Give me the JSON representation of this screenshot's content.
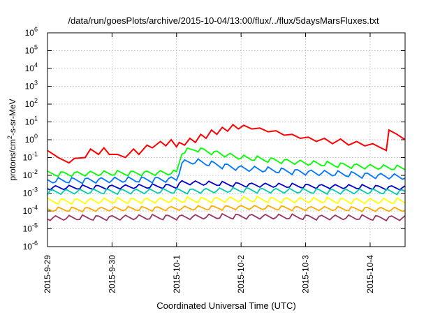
{
  "chart_data": {
    "type": "line",
    "title": "/data/run/goesPlots/archive/2015-10-04/13:00/flux/../flux/5daysMarsFluxes.txt",
    "xlabel": "Coordinated Universal Time (UTC)",
    "ylabel_parts": {
      "pre": "protons/cm",
      "sup": "2",
      "post": "-s-sr-MeV"
    },
    "y_scale": "log",
    "ylim": [
      1e-06,
      1000000
    ],
    "y_ticks": [
      {
        "value": 1e-06,
        "base": "10",
        "exp": "-6"
      },
      {
        "value": 1e-05,
        "base": "10",
        "exp": "-5"
      },
      {
        "value": 0.0001,
        "base": "10",
        "exp": "-4"
      },
      {
        "value": 0.001,
        "base": "10",
        "exp": "-3"
      },
      {
        "value": 0.01,
        "base": "10",
        "exp": "-2"
      },
      {
        "value": 0.1,
        "base": "10",
        "exp": "-1"
      },
      {
        "value": 1,
        "base": "10",
        "exp": "0"
      },
      {
        "value": 10,
        "base": "10",
        "exp": "1"
      },
      {
        "value": 100,
        "base": "10",
        "exp": "2"
      },
      {
        "value": 1000,
        "base": "10",
        "exp": "3"
      },
      {
        "value": 10000,
        "base": "10",
        "exp": "4"
      },
      {
        "value": 100000,
        "base": "10",
        "exp": "5"
      },
      {
        "value": 1000000,
        "base": "10",
        "exp": "6"
      }
    ],
    "xlim": [
      "2015-09-29 00:00",
      "2015-10-04 13:00"
    ],
    "x_ticks": [
      "2015-9-29",
      "2015-9-30",
      "2015-10-1",
      "2015-10-2",
      "2015-10-3",
      "2015-10-4"
    ],
    "grid": true,
    "series": [
      {
        "color": "#ff0000",
        "x": [
          "2015-09-29 00:00",
          "2015-09-29 04:00",
          "2015-09-29 08:00",
          "2015-09-29 10:00",
          "2015-09-29 14:00",
          "2015-09-29 16:00",
          "2015-09-29 19:00",
          "2015-09-29 21:00",
          "2015-09-29 23:00",
          "2015-09-30 02:00",
          "2015-09-30 05:00",
          "2015-09-30 08:00",
          "2015-09-30 10:00",
          "2015-09-30 13:00",
          "2015-09-30 15:00",
          "2015-09-30 18:00",
          "2015-09-30 20:00",
          "2015-09-30 22:00",
          "2015-10-01 00:00",
          "2015-10-01 01:00",
          "2015-10-01 03:00",
          "2015-10-01 05:00",
          "2015-10-01 07:00",
          "2015-10-01 09:00",
          "2015-10-01 11:00",
          "2015-10-01 13:00",
          "2015-10-01 15:00",
          "2015-10-01 17:00",
          "2015-10-01 19:00",
          "2015-10-01 21:00",
          "2015-10-01 23:00",
          "2015-10-02 01:00",
          "2015-10-02 04:00",
          "2015-10-02 07:00",
          "2015-10-02 10:00",
          "2015-10-02 13:00",
          "2015-10-02 16:00",
          "2015-10-02 19:00",
          "2015-10-02 22:00",
          "2015-10-03 01:00",
          "2015-10-03 04:00",
          "2015-10-03 07:00",
          "2015-10-03 10:00",
          "2015-10-03 13:00",
          "2015-10-03 16:00",
          "2015-10-03 19:00",
          "2015-10-03 22:00",
          "2015-10-04 01:00",
          "2015-10-04 04:00",
          "2015-10-04 06:00",
          "2015-10-04 07:00",
          "2015-10-04 10:00",
          "2015-10-04 13:00"
        ],
        "y": [
          0.25,
          0.1,
          0.05,
          0.09,
          0.1,
          0.3,
          0.15,
          0.35,
          0.15,
          0.15,
          0.1,
          0.3,
          0.15,
          0.5,
          0.35,
          0.8,
          0.45,
          1.0,
          0.4,
          0.7,
          0.5,
          1.2,
          0.7,
          2.0,
          1.2,
          3.5,
          2.0,
          5.0,
          3.0,
          7.0,
          4.0,
          6.5,
          4.0,
          4.5,
          2.8,
          3.2,
          1.8,
          2.0,
          1.2,
          1.4,
          0.8,
          1.2,
          0.6,
          1.1,
          0.5,
          0.8,
          0.45,
          0.6,
          0.35,
          0.25,
          3.5,
          2.0,
          1.0
        ]
      },
      {
        "color": "#00ff00",
        "x": [
          "2015-09-29 00:00",
          "2015-10-01 00:00",
          "2015-10-01 02:00",
          "2015-10-01 07:00",
          "2015-10-02 00:00",
          "2015-10-03 00:00",
          "2015-10-04 00:00",
          "2015-10-04 13:00"
        ],
        "y": [
          0.012,
          0.014,
          0.2,
          0.3,
          0.1,
          0.05,
          0.03,
          0.025
        ]
      },
      {
        "color": "#0077ff",
        "x": [
          "2015-09-29 00:00",
          "2015-10-01 00:00",
          "2015-10-01 02:00",
          "2015-10-01 07:00",
          "2015-10-02 00:00",
          "2015-10-03 00:00",
          "2015-10-04 00:00",
          "2015-10-04 13:00"
        ],
        "y": [
          0.005,
          0.006,
          0.05,
          0.06,
          0.025,
          0.015,
          0.01,
          0.008
        ]
      },
      {
        "color": "#0000cc",
        "x": [
          "2015-09-29 00:00",
          "2015-10-01 00:00",
          "2015-10-01 02:00",
          "2015-10-02 00:00",
          "2015-10-03 00:00",
          "2015-10-04 13:00"
        ],
        "y": [
          0.002,
          0.0025,
          0.004,
          0.003,
          0.0025,
          0.002
        ]
      },
      {
        "color": "#00ccaa",
        "x": [
          "2015-09-29 00:00",
          "2015-10-01 00:00",
          "2015-10-02 00:00",
          "2015-10-03 00:00",
          "2015-10-04 13:00"
        ],
        "y": [
          0.0012,
          0.0013,
          0.0015,
          0.0013,
          0.0012
        ]
      },
      {
        "color": "#ffff00",
        "x": [
          "2015-09-29 00:00",
          "2015-10-01 00:00",
          "2015-10-02 00:00",
          "2015-10-03 00:00",
          "2015-10-04 13:00"
        ],
        "y": [
          0.00035,
          0.0004,
          0.00045,
          0.0004,
          0.00035
        ]
      },
      {
        "color": "#ffaa00",
        "x": [
          "2015-09-29 00:00",
          "2015-10-01 00:00",
          "2015-10-02 00:00",
          "2015-10-03 00:00",
          "2015-10-04 13:00"
        ],
        "y": [
          0.00012,
          0.00014,
          0.00016,
          0.00014,
          0.00012
        ]
      },
      {
        "color": "#993366",
        "x": [
          "2015-09-29 00:00",
          "2015-10-01 00:00",
          "2015-10-02 00:00",
          "2015-10-03 00:00",
          "2015-10-04 13:00"
        ],
        "y": [
          4e-05,
          4.5e-05,
          5e-05,
          4.5e-05,
          4e-05
        ]
      }
    ]
  }
}
